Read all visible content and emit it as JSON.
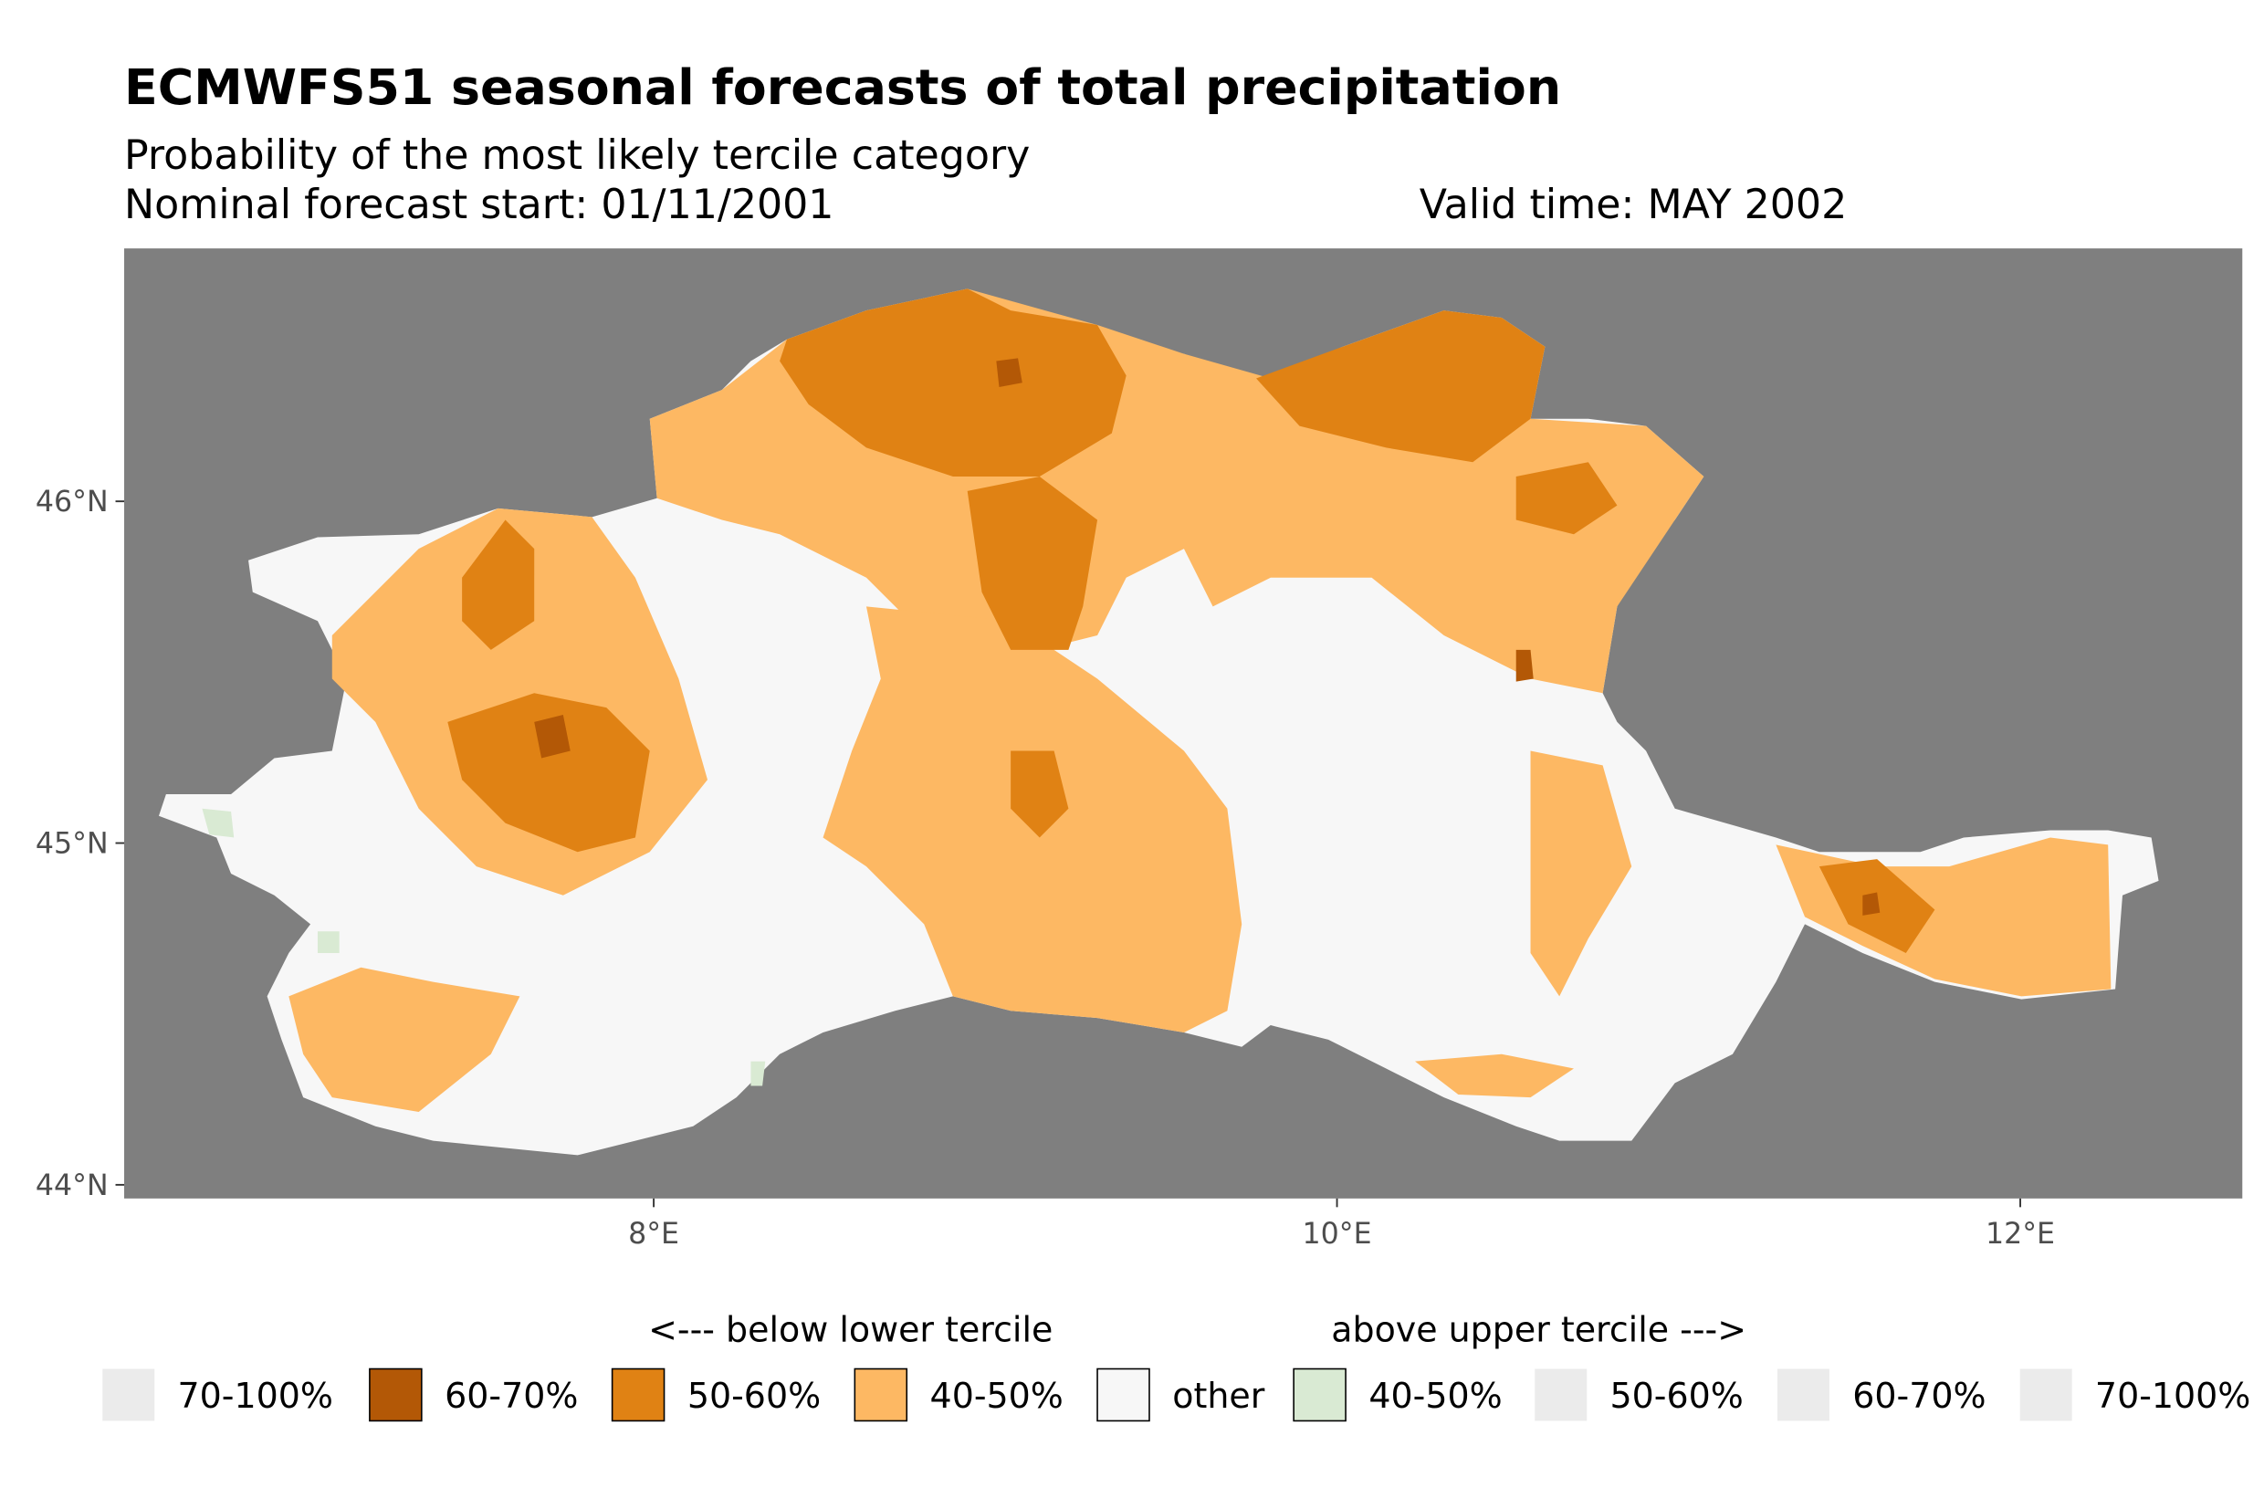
{
  "title": "ECMWFS51 seasonal forecasts of total precipitation",
  "subtitle": "Probability of the most likely tercile category",
  "forecast_start": "Nominal forecast start: 01/11/2001",
  "valid_time": "Valid time: MAY 2002",
  "chart_data": {
    "type": "heatmap",
    "map_extent": {
      "lon": [
        6.45,
        12.65
      ],
      "lat": [
        43.96,
        46.74
      ]
    },
    "background_color": "#7f7f7f",
    "x_ticks": [
      {
        "value": 8,
        "label": "8°E"
      },
      {
        "value": 10,
        "label": "10°E"
      },
      {
        "value": 12,
        "label": "12°E"
      }
    ],
    "y_ticks": [
      {
        "value": 44,
        "label": "44°N"
      },
      {
        "value": 45,
        "label": "45°N"
      },
      {
        "value": 46,
        "label": "46°N"
      }
    ],
    "legend": {
      "placement": "bottom",
      "below_header": "<--- below lower tercile",
      "above_header": "above upper tercile --->",
      "items": [
        {
          "label": "70-100%",
          "color": "#ebebeb",
          "group": "below"
        },
        {
          "label": "60-70%",
          "color": "#b35806",
          "group": "below"
        },
        {
          "label": "50-60%",
          "color": "#e08214",
          "group": "below"
        },
        {
          "label": "40-50%",
          "color": "#fdb863",
          "group": "below"
        },
        {
          "label": "other",
          "color": "#f7f7f7",
          "group": "normal"
        },
        {
          "label": "40-50%",
          "color": "#d9ead3",
          "group": "above"
        },
        {
          "label": "50-60%",
          "color": "#ebebeb",
          "group": "above"
        },
        {
          "label": "60-70%",
          "color": "#ebebeb",
          "group": "above"
        },
        {
          "label": "70-100%",
          "color": "#ebebeb",
          "group": "above"
        }
      ]
    }
  }
}
